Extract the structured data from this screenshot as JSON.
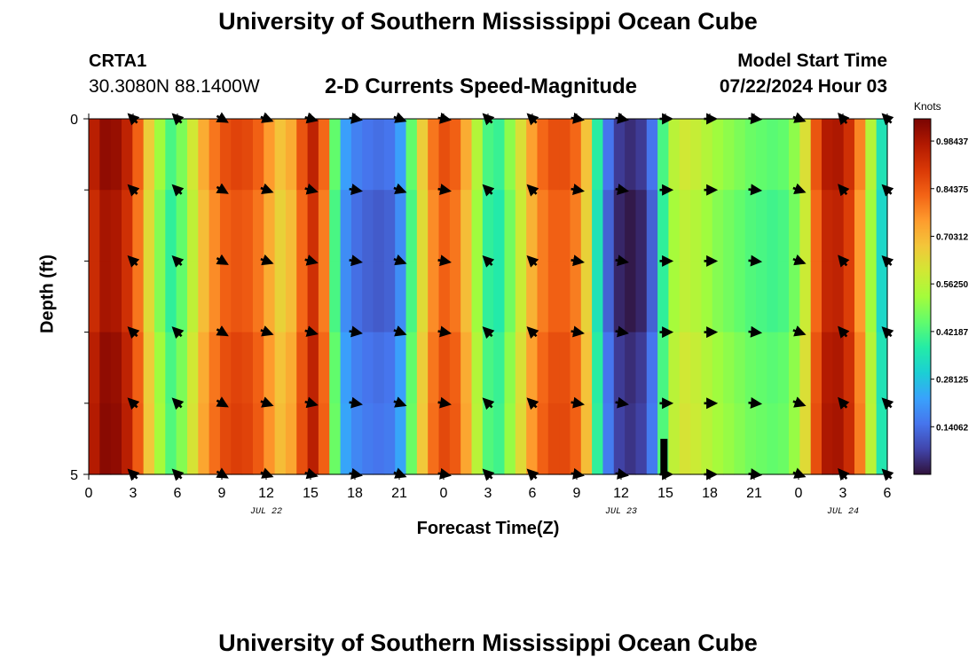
{
  "header": {
    "main_title": "University of Southern Mississippi Ocean Cube",
    "station_id": "CRTA1",
    "station_coords": "30.3080N  88.1400W",
    "plot_title": "2-D Currents Speed-Magnitude",
    "model_start_label": "Model Start Time",
    "model_start_value": "07/22/2024 Hour 03"
  },
  "footer": {
    "main_title": "University of Southern Mississippi Ocean Cube"
  },
  "chart_data": {
    "type": "heatmap",
    "title": "2-D Currents Speed-Magnitude",
    "xlabel": "Forecast Time(Z)",
    "ylabel": "Depth (ft)",
    "x_hours_range": [
      0,
      54
    ],
    "ylim": [
      0,
      5
    ],
    "x_tick_labels": [
      "0",
      "3",
      "6",
      "9",
      "12",
      "15",
      "18",
      "21",
      "0",
      "3",
      "6",
      "9",
      "12",
      "15",
      "18",
      "21",
      "0",
      "3",
      "6"
    ],
    "x_tick_hours": [
      0,
      3,
      6,
      9,
      12,
      15,
      18,
      21,
      24,
      27,
      30,
      33,
      36,
      39,
      42,
      45,
      48,
      51,
      54
    ],
    "y_tick_labels": [
      "0",
      "5"
    ],
    "y_tick_values": [
      0,
      5
    ],
    "y_minor_ticks": [
      1,
      2,
      3,
      4
    ],
    "date_labels": [
      {
        "text": "JUL 22",
        "hour": 12
      },
      {
        "text": "JUL 23",
        "hour": 36
      },
      {
        "text": "JUL 24",
        "hour": 51
      }
    ],
    "colorbar": {
      "unit": "Knots",
      "min": 0,
      "max": 1.05,
      "tick_labels": [
        "0.98437",
        "0.84375",
        "0.70312",
        "0.56250",
        "0.42187",
        "0.28125",
        "0.14062"
      ],
      "tick_values": [
        0.984375,
        0.84375,
        0.703125,
        0.5625,
        0.421875,
        0.28125,
        0.140625
      ],
      "stops": [
        "#30123b",
        "#4145ab",
        "#4675ed",
        "#39a2fc",
        "#1bcfd4",
        "#24eca6",
        "#61fc6c",
        "#a4fc3b",
        "#d1e834",
        "#f3c63a",
        "#fe9b2d",
        "#f36315",
        "#d93806",
        "#b11901",
        "#7a0402"
      ]
    },
    "speed_knots": [
      0.96,
      1.02,
      1.01,
      0.95,
      0.83,
      0.66,
      0.52,
      0.42,
      0.48,
      0.6,
      0.72,
      0.8,
      0.86,
      0.88,
      0.87,
      0.83,
      0.75,
      0.68,
      0.72,
      0.85,
      0.95,
      0.82,
      0.45,
      0.22,
      0.17,
      0.15,
      0.14,
      0.15,
      0.22,
      0.45,
      0.66,
      0.8,
      0.86,
      0.83,
      0.72,
      0.55,
      0.42,
      0.4,
      0.5,
      0.62,
      0.74,
      0.82,
      0.86,
      0.86,
      0.82,
      0.68,
      0.38,
      0.15,
      0.06,
      0.04,
      0.06,
      0.15,
      0.42,
      0.56,
      0.6,
      0.58,
      0.55,
      0.52,
      0.5,
      0.48,
      0.46,
      0.45,
      0.44,
      0.45,
      0.5,
      0.62,
      0.85,
      0.97,
      0.98,
      0.92,
      0.78,
      0.55,
      0.35
    ],
    "arrow_hours": [
      3,
      6,
      9,
      12,
      15,
      18,
      21,
      24,
      27,
      30,
      33,
      36,
      39,
      42,
      45,
      48,
      51,
      54
    ],
    "arrow_depths_ft": [
      0,
      1,
      2,
      3,
      4,
      5
    ],
    "arrow_direction_deg": [
      315,
      315,
      120,
      110,
      105,
      100,
      110,
      100,
      315,
      315,
      100,
      100,
      90,
      90,
      95,
      110,
      320,
      315
    ],
    "missing_data": {
      "hour": 38.9,
      "depth_ft": [
        4.5,
        5
      ]
    }
  }
}
